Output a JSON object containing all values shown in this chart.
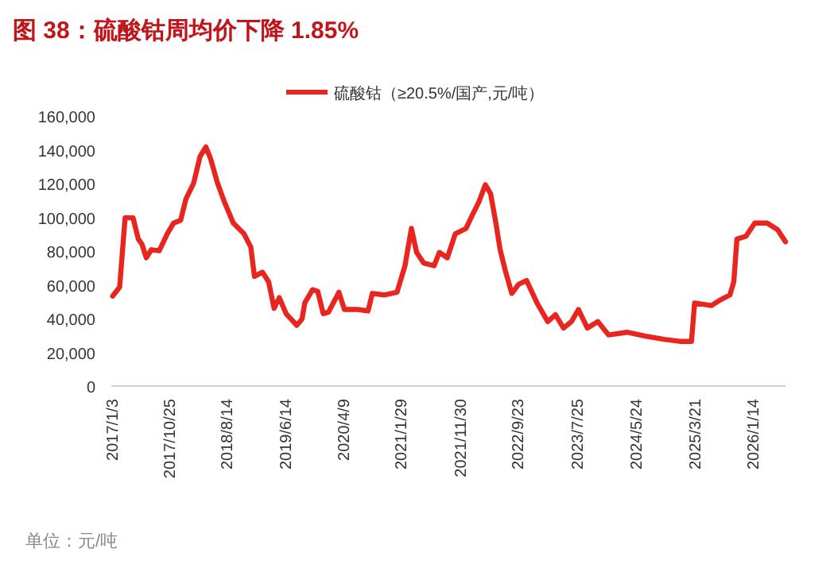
{
  "chart_data": {
    "type": "line",
    "title": "图 38：硫酸钴周均价下降 1.85%",
    "annotations": [
      "单位：元/吨"
    ],
    "legend": "top",
    "x": [
      "2017-01-10",
      "2017-02-15",
      "2017-03-15",
      "2017-04-25",
      "2017-05-22",
      "2017-06-10",
      "2017-07-02",
      "2017-07-28",
      "2017-09-07",
      "2017-10-18",
      "2017-11-20",
      "2017-12-26",
      "2018-01-22",
      "2018-03-03",
      "2018-04-05",
      "2018-05-05",
      "2018-05-30",
      "2018-07-04",
      "2018-08-08",
      "2018-09-23",
      "2018-11-17",
      "2018-12-22",
      "2019-01-10",
      "2019-02-20",
      "2019-03-24",
      "2019-04-21",
      "2019-05-18",
      "2019-06-22",
      "2019-08-16",
      "2019-09-12",
      "2019-09-26",
      "2019-11-05",
      "2019-12-02",
      "2019-12-30",
      "2020-01-26",
      "2020-03-20",
      "2020-04-17",
      "2020-06-23",
      "2020-08-17",
      "2020-09-08",
      "2020-11-07",
      "2021-01-13",
      "2021-02-23",
      "2021-03-28",
      "2021-04-24",
      "2021-05-30",
      "2021-07-23",
      "2021-08-19",
      "2021-09-29",
      "2021-11-09",
      "2022-01-03",
      "2022-01-29",
      "2022-03-11",
      "2022-04-13",
      "2022-05-10",
      "2022-06-06",
      "2022-06-28",
      "2022-07-25",
      "2022-08-27",
      "2022-10-01",
      "2022-11-11",
      "2023-01-04",
      "2023-02-28",
      "2023-04-09",
      "2023-05-20",
      "2023-06-30",
      "2023-08-05",
      "2023-09-20",
      "2023-11-13",
      "2024-01-07",
      "2024-04-11",
      "2024-07-15",
      "2024-10-19",
      "2025-01-08",
      "2025-03-09",
      "2025-03-25",
      "2025-06-20",
      "2025-07-31",
      "2025-09-23",
      "2025-10-13",
      "2025-10-29",
      "2025-12-14",
      "2026-01-29",
      "2026-04-02",
      "2026-05-26",
      "2026-07-06"
    ],
    "series": [
      {
        "name": "硫酸钴（≥20.5%/国产,元/吨）",
        "color": "#e8251f",
        "values": [
          53300,
          58700,
          99700,
          99700,
          87100,
          84000,
          76000,
          80800,
          80200,
          90200,
          96600,
          98200,
          110800,
          120200,
          136000,
          141700,
          134400,
          120200,
          109200,
          96600,
          90200,
          82400,
          65000,
          67500,
          61800,
          46100,
          52400,
          42900,
          36000,
          39800,
          49200,
          57100,
          56100,
          42900,
          43800,
          55600,
          45400,
          45400,
          44500,
          54900,
          54000,
          55600,
          71300,
          93400,
          79200,
          72900,
          71300,
          79200,
          76000,
          90200,
          93400,
          99700,
          109200,
          119300,
          113900,
          96600,
          80800,
          68200,
          54900,
          60300,
          62500,
          49200,
          38200,
          42300,
          34400,
          38200,
          45400,
          34400,
          38200,
          30300,
          31900,
          29600,
          27700,
          26500,
          26500,
          49200,
          47700,
          50800,
          54000,
          61800,
          87100,
          88700,
          96600,
          96600,
          92700,
          85500
        ]
      }
    ],
    "xlim": [
      "2017-01-03",
      "2026-07-06"
    ],
    "xticks": [
      {
        "value": "2017-01-03",
        "label": "2017/1/3"
      },
      {
        "value": "2017-10-25",
        "label": "2017/10/25"
      },
      {
        "value": "2018-08-14",
        "label": "2018/8/14"
      },
      {
        "value": "2019-06-14",
        "label": "2019/6/14"
      },
      {
        "value": "2020-04-09",
        "label": "2020/4/9"
      },
      {
        "value": "2021-01-29",
        "label": "2021/1/29"
      },
      {
        "value": "2021-11-30",
        "label": "2021/11/30"
      },
      {
        "value": "2022-09-23",
        "label": "2022/9/23"
      },
      {
        "value": "2023-07-25",
        "label": "2023/7/25"
      },
      {
        "value": "2024-05-24",
        "label": "2024/5/24"
      },
      {
        "value": "2025-03-21",
        "label": "2025/3/21"
      },
      {
        "value": "2026-01-14",
        "label": "2026/1/14"
      }
    ],
    "ylim": [
      0,
      160000
    ],
    "yticks": [
      0,
      {
        "value": 20000,
        "label": "20,000"
      },
      {
        "value": 40000,
        "label": "40,000"
      },
      {
        "value": 60000,
        "label": "60,000"
      },
      {
        "value": 80000,
        "label": "80,000"
      },
      {
        "value": 100000,
        "label": "100,000"
      },
      {
        "value": 120000,
        "label": "120,000"
      },
      {
        "value": 140000,
        "label": "140,000"
      },
      {
        "value": 160000,
        "label": "160,000"
      }
    ],
    "marker": "none",
    "line_style": "solid"
  }
}
